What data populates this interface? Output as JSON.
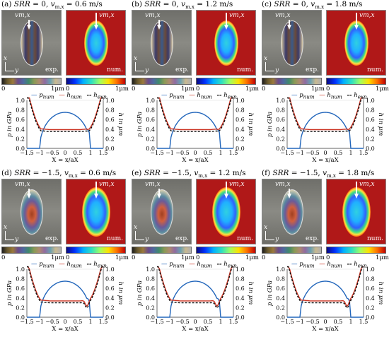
{
  "panels": [
    {
      "id": "a",
      "label": "(a)",
      "srr": "SRR = 0,",
      "v": "v",
      "vsub": "m,x",
      "vval": " = 0.6 m/s",
      "type": 0
    },
    {
      "id": "b",
      "label": "(b)",
      "srr": "SRR = 0,",
      "v": "v",
      "vsub": "m,x",
      "vval": " = 1.2 m/s",
      "type": 0
    },
    {
      "id": "c",
      "label": "(c)",
      "srr": "SRR = 0,",
      "v": "v",
      "vsub": "m,x",
      "vval": " = 1.8 m/s",
      "type": 0
    },
    {
      "id": "d",
      "label": "(d)",
      "srr": "SRR = −1.5,",
      "v": "v",
      "vsub": "m,x",
      "vval": " = 0.6 m/s",
      "type": 1
    },
    {
      "id": "e",
      "label": "(e)",
      "srr": "SRR = −1.5,",
      "v": "v",
      "vsub": "m,x",
      "vval": " = 1.2 m/s",
      "type": 1
    },
    {
      "id": "f",
      "label": "(f)",
      "srr": "SRR = −1.5,",
      "v": "v",
      "vsub": "m,x",
      "vval": " = 1.8 m/s",
      "type": 1
    }
  ],
  "image_labels": {
    "exp": "exp.",
    "num": "num.",
    "vel": "vm,x",
    "x": "x",
    "y": "y"
  },
  "colorbar": {
    "min": "0",
    "max": "1μm"
  },
  "legend": {
    "p": "pnum",
    "h": "hnum",
    "hexp": "hexp"
  },
  "axes": {
    "xlabel": "X = x/aX",
    "ylabel_left": "p in GPa",
    "ylabel_right": "h in μm",
    "xticks": [
      "−1.5",
      "−1",
      "−0.5",
      "0",
      "0.5",
      "1",
      "1.5"
    ],
    "yticks": [
      "0.0",
      "0.2",
      "0.4",
      "0.6",
      "0.8",
      "1.0"
    ]
  },
  "colors": {
    "p": "#2266bb",
    "h": "#cc3322",
    "hexp": "#111111"
  }
}
